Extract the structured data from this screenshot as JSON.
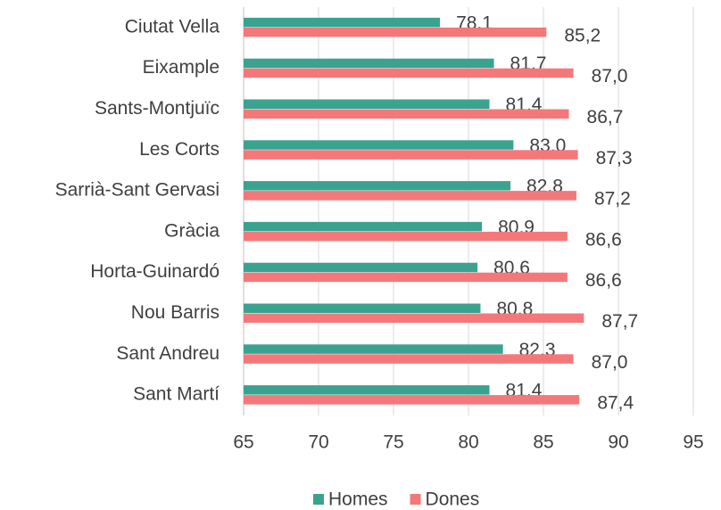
{
  "chart_data": {
    "type": "barh",
    "categories": [
      "Ciutat Vella",
      "Eixample",
      "Sants-Montjuïc",
      "Les Corts",
      "Sarrià-Sant Gervasi",
      "Gràcia",
      "Horta-Guinardó",
      "Nou Barris",
      "Sant Andreu",
      "Sant Martí"
    ],
    "series": [
      {
        "name": "Homes",
        "color": "#3aa38f",
        "values": [
          78.1,
          81.7,
          81.4,
          83.0,
          82.8,
          80.9,
          80.6,
          80.8,
          82.3,
          81.4
        ],
        "value_labels": [
          "78,1",
          "81,7",
          "81,4",
          "83,0",
          "82,8",
          "80,9",
          "80,6",
          "80,8",
          "82,3",
          "81,4"
        ]
      },
      {
        "name": "Dones",
        "color": "#f4787a",
        "values": [
          85.2,
          87.0,
          86.7,
          87.3,
          87.2,
          86.6,
          86.6,
          87.7,
          87.0,
          87.4
        ],
        "value_labels": [
          "85,2",
          "87,0",
          "86,7",
          "87,3",
          "87,2",
          "86,6",
          "86,6",
          "87,7",
          "87,0",
          "87,4"
        ]
      }
    ],
    "xlim": [
      65,
      95
    ],
    "xticks": [
      65,
      70,
      75,
      80,
      85,
      90,
      95
    ],
    "grid": true,
    "legend": "bottom"
  }
}
